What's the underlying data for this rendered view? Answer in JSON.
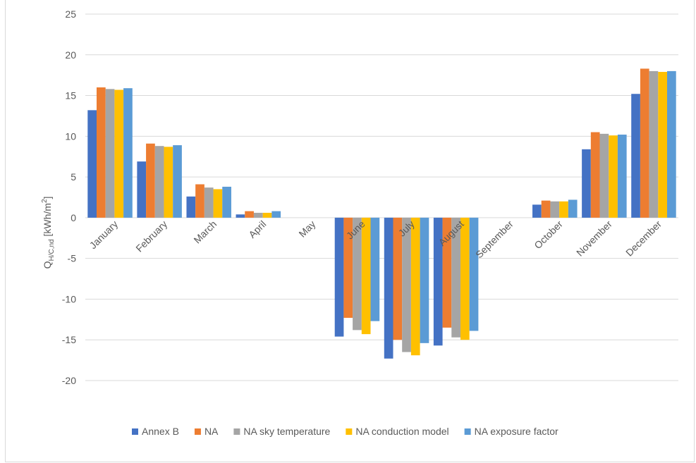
{
  "chart_data": {
    "type": "bar",
    "title": "",
    "xlabel": "",
    "ylabel": {
      "main": "Q",
      "subscript": "H/C,nd",
      "unit_prefix": " [kWh/m",
      "unit_sup": "2",
      "unit_suffix": "]"
    },
    "ylim": [
      -20,
      25
    ],
    "yticks": [
      -20,
      -15,
      -10,
      -5,
      0,
      5,
      10,
      15,
      20,
      25
    ],
    "grid": true,
    "legend_position": "bottom",
    "categories": [
      "January",
      "February",
      "March",
      "April",
      "May",
      "June",
      "July",
      "August",
      "September",
      "October",
      "November",
      "December"
    ],
    "series": [
      {
        "name": "Annex B",
        "color": "#4472c4",
        "values": [
          13.2,
          6.9,
          2.6,
          0.4,
          0,
          -14.6,
          -17.3,
          -15.7,
          0,
          1.6,
          8.4,
          15.2
        ]
      },
      {
        "name": "NA",
        "color": "#ed7d31",
        "values": [
          16.0,
          9.1,
          4.1,
          0.8,
          0,
          -12.3,
          -15.0,
          -13.5,
          0,
          2.1,
          10.5,
          18.3
        ]
      },
      {
        "name": "NA sky temperature",
        "color": "#a5a5a5",
        "values": [
          15.8,
          8.8,
          3.7,
          0.6,
          0,
          -13.8,
          -16.5,
          -14.7,
          0,
          2.0,
          10.3,
          18.0
        ]
      },
      {
        "name": "NA conduction model",
        "color": "#ffc000",
        "values": [
          15.7,
          8.7,
          3.5,
          0.6,
          0,
          -14.3,
          -16.9,
          -15.0,
          0,
          2.0,
          10.1,
          17.9
        ]
      },
      {
        "name": "NA exposure factor",
        "color": "#5b9bd5",
        "values": [
          15.9,
          8.9,
          3.8,
          0.8,
          0,
          -12.7,
          -15.4,
          -13.9,
          0,
          2.2,
          10.2,
          18.0
        ]
      }
    ]
  }
}
